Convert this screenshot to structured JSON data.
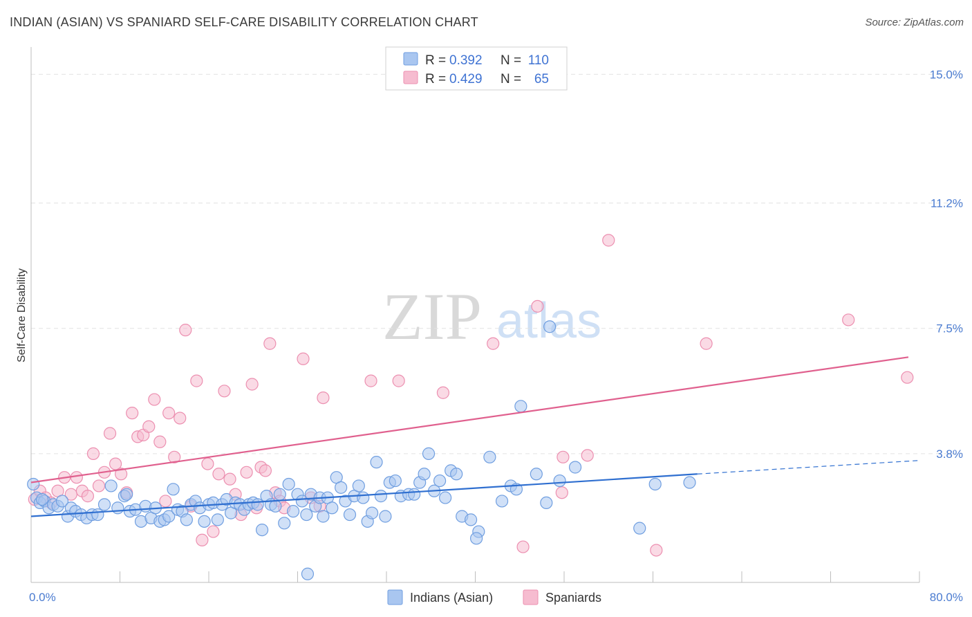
{
  "header": {
    "title": "INDIAN (ASIAN) VS SPANIARD SELF-CARE DISABILITY CORRELATION CHART",
    "source": "Source: ZipAtlas.com"
  },
  "watermark": {
    "zip": "ZIP",
    "atlas": "atlas"
  },
  "legend": {
    "row1": {
      "r_label": "R =",
      "r_value": "0.392",
      "n_label": "N =",
      "n_value": "110"
    },
    "row2": {
      "r_label": "R =",
      "r_value": "0.429",
      "n_label": "N =",
      "n_value": "65"
    }
  },
  "bottom_legend": {
    "series1": "Indians (Asian)",
    "series2": "Spaniards"
  },
  "colors": {
    "blue_fill": "#a9c6f0",
    "blue_stroke": "#6f9ee0",
    "blue_line": "#2f6fd0",
    "pink_fill": "#f6bcd0",
    "pink_stroke": "#ec8fb0",
    "pink_line": "#e0608e",
    "grid": "#e2e2e2",
    "axis_text": "#4a7bd0"
  },
  "chart_data": {
    "type": "scatter",
    "title": "INDIAN (ASIAN) VS SPANIARD SELF-CARE DISABILITY CORRELATION CHART",
    "xlabel": "",
    "ylabel": "Self-Care Disability",
    "xlim": [
      0,
      80
    ],
    "ylim": [
      0,
      15.6
    ],
    "x_tick_labels": [
      "0.0%",
      "80.0%"
    ],
    "y_ticks": [
      3.8,
      7.5,
      11.2,
      15.0
    ],
    "y_tick_labels": [
      "3.8%",
      "7.5%",
      "11.2%",
      "15.0%"
    ],
    "series": [
      {
        "name": "Indians (Asian)",
        "R": 0.392,
        "N": 110,
        "trend": {
          "x0": 0,
          "y0": 1.95,
          "x1": 60,
          "y1": 3.2,
          "dash_to_x": 80,
          "dash_to_y": 3.6
        },
        "points": [
          [
            0.2,
            2.9
          ],
          [
            0.5,
            2.5
          ],
          [
            0.8,
            2.35
          ],
          [
            1.2,
            2.4
          ],
          [
            1.6,
            2.2
          ],
          [
            2.0,
            2.3
          ],
          [
            2.4,
            2.25
          ],
          [
            2.8,
            2.4
          ],
          [
            3.3,
            1.95
          ],
          [
            3.6,
            2.2
          ],
          [
            4.0,
            2.1
          ],
          [
            4.5,
            2.0
          ],
          [
            5.0,
            1.9
          ],
          [
            5.5,
            2.0
          ],
          [
            6.0,
            2.0
          ],
          [
            6.6,
            2.3
          ],
          [
            7.2,
            2.85
          ],
          [
            7.8,
            2.2
          ],
          [
            8.4,
            2.55
          ],
          [
            8.9,
            2.1
          ],
          [
            9.4,
            2.15
          ],
          [
            9.9,
            1.8
          ],
          [
            10.3,
            2.25
          ],
          [
            10.8,
            1.9
          ],
          [
            11.2,
            2.2
          ],
          [
            11.6,
            1.8
          ],
          [
            12.0,
            1.85
          ],
          [
            12.4,
            1.95
          ],
          [
            12.8,
            2.75
          ],
          [
            13.2,
            2.15
          ],
          [
            13.6,
            2.1
          ],
          [
            14.0,
            1.85
          ],
          [
            14.4,
            2.3
          ],
          [
            14.8,
            2.4
          ],
          [
            15.2,
            2.2
          ],
          [
            15.6,
            1.8
          ],
          [
            16.0,
            2.3
          ],
          [
            16.4,
            2.35
          ],
          [
            16.8,
            1.85
          ],
          [
            17.2,
            2.3
          ],
          [
            17.6,
            2.45
          ],
          [
            18.0,
            2.05
          ],
          [
            18.4,
            2.35
          ],
          [
            18.8,
            2.3
          ],
          [
            19.2,
            2.15
          ],
          [
            19.6,
            2.3
          ],
          [
            20.0,
            2.35
          ],
          [
            20.4,
            2.3
          ],
          [
            20.8,
            1.55
          ],
          [
            21.2,
            2.55
          ],
          [
            21.6,
            2.3
          ],
          [
            22.0,
            2.25
          ],
          [
            22.4,
            2.6
          ],
          [
            22.8,
            1.75
          ],
          [
            23.2,
            2.9
          ],
          [
            23.6,
            2.1
          ],
          [
            24.0,
            2.6
          ],
          [
            24.4,
            2.4
          ],
          [
            24.8,
            2.0
          ],
          [
            25.2,
            2.6
          ],
          [
            25.6,
            2.25
          ],
          [
            26.0,
            2.5
          ],
          [
            26.3,
            1.95
          ],
          [
            26.7,
            2.5
          ],
          [
            27.1,
            2.2
          ],
          [
            27.5,
            3.1
          ],
          [
            27.9,
            2.8
          ],
          [
            28.3,
            2.4
          ],
          [
            28.7,
            2.0
          ],
          [
            29.1,
            2.55
          ],
          [
            29.5,
            2.85
          ],
          [
            29.9,
            2.5
          ],
          [
            30.3,
            1.8
          ],
          [
            30.7,
            2.05
          ],
          [
            31.1,
            3.55
          ],
          [
            31.5,
            2.55
          ],
          [
            31.9,
            1.95
          ],
          [
            32.3,
            2.95
          ],
          [
            32.8,
            3.0
          ],
          [
            33.3,
            2.55
          ],
          [
            34.0,
            2.6
          ],
          [
            34.5,
            2.6
          ],
          [
            35.0,
            2.95
          ],
          [
            35.4,
            3.2
          ],
          [
            35.8,
            3.8
          ],
          [
            36.3,
            2.7
          ],
          [
            36.8,
            3.0
          ],
          [
            37.3,
            2.5
          ],
          [
            37.8,
            3.3
          ],
          [
            38.3,
            3.2
          ],
          [
            38.8,
            1.95
          ],
          [
            39.6,
            1.85
          ],
          [
            40.3,
            1.5
          ],
          [
            40.1,
            1.3
          ],
          [
            41.3,
            3.7
          ],
          [
            42.4,
            2.4
          ],
          [
            43.2,
            2.85
          ],
          [
            43.7,
            2.75
          ],
          [
            44.1,
            5.2
          ],
          [
            45.5,
            3.2
          ],
          [
            46.4,
            2.35
          ],
          [
            46.7,
            7.55
          ],
          [
            47.6,
            3.0
          ],
          [
            49.0,
            3.4
          ],
          [
            54.8,
            1.6
          ],
          [
            56.2,
            2.9
          ],
          [
            59.3,
            2.95
          ],
          [
            24.9,
            0.25
          ],
          [
            8.6,
            2.6
          ],
          [
            1.0,
            2.45
          ]
        ]
      },
      {
        "name": "Spaniards",
        "R": 0.429,
        "N": 65,
        "trend": {
          "x0": 0,
          "y0": 2.95,
          "x1": 79,
          "y1": 6.65
        },
        "points": [
          [
            0.3,
            2.45
          ],
          [
            0.8,
            2.7
          ],
          [
            1.3,
            2.5
          ],
          [
            1.8,
            2.35
          ],
          [
            2.4,
            2.7
          ],
          [
            3.0,
            3.1
          ],
          [
            3.6,
            2.6
          ],
          [
            4.1,
            3.1
          ],
          [
            4.6,
            2.7
          ],
          [
            5.1,
            2.55
          ],
          [
            5.6,
            3.8
          ],
          [
            6.1,
            2.85
          ],
          [
            6.6,
            3.25
          ],
          [
            7.1,
            4.4
          ],
          [
            7.6,
            3.5
          ],
          [
            8.1,
            3.2
          ],
          [
            8.6,
            2.65
          ],
          [
            9.1,
            5.0
          ],
          [
            9.6,
            4.3
          ],
          [
            10.1,
            4.35
          ],
          [
            10.6,
            4.6
          ],
          [
            11.1,
            5.4
          ],
          [
            11.6,
            4.15
          ],
          [
            12.1,
            2.4
          ],
          [
            12.4,
            5.0
          ],
          [
            12.9,
            3.7
          ],
          [
            13.4,
            4.85
          ],
          [
            13.9,
            7.45
          ],
          [
            14.4,
            2.25
          ],
          [
            14.9,
            5.95
          ],
          [
            15.4,
            1.25
          ],
          [
            15.9,
            3.5
          ],
          [
            16.4,
            1.5
          ],
          [
            16.9,
            3.2
          ],
          [
            17.4,
            5.65
          ],
          [
            17.9,
            3.05
          ],
          [
            18.4,
            2.6
          ],
          [
            18.9,
            2.0
          ],
          [
            19.4,
            3.25
          ],
          [
            19.9,
            5.85
          ],
          [
            20.3,
            2.2
          ],
          [
            20.7,
            3.4
          ],
          [
            21.1,
            3.3
          ],
          [
            21.5,
            7.05
          ],
          [
            22.0,
            2.65
          ],
          [
            22.4,
            2.4
          ],
          [
            22.8,
            2.2
          ],
          [
            25.2,
            2.5
          ],
          [
            24.5,
            6.6
          ],
          [
            26.3,
            5.45
          ],
          [
            30.6,
            5.95
          ],
          [
            33.1,
            5.95
          ],
          [
            37.1,
            5.6
          ],
          [
            41.6,
            7.05
          ],
          [
            44.3,
            1.05
          ],
          [
            45.6,
            8.15
          ],
          [
            47.8,
            2.65
          ],
          [
            47.9,
            3.7
          ],
          [
            50.1,
            3.75
          ],
          [
            52.0,
            10.1
          ],
          [
            56.3,
            0.95
          ],
          [
            60.8,
            7.05
          ],
          [
            73.6,
            7.75
          ],
          [
            78.9,
            6.05
          ],
          [
            26.0,
            2.25
          ]
        ]
      }
    ]
  }
}
